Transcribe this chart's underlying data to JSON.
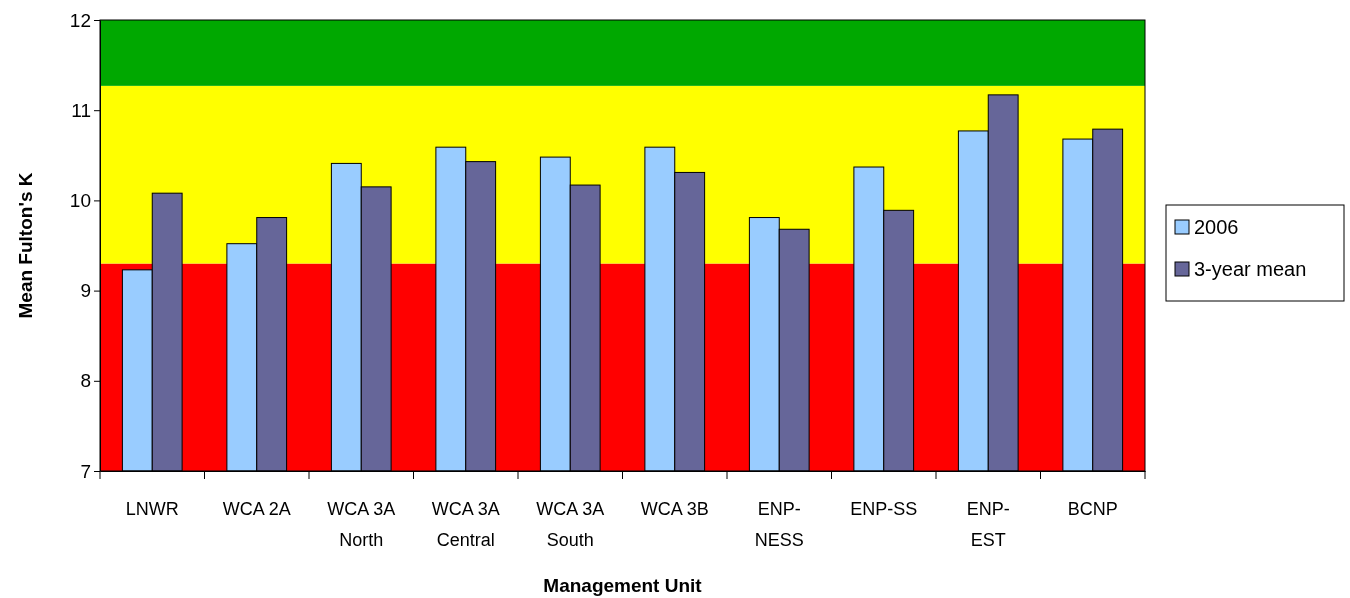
{
  "chart_data": {
    "type": "bar",
    "xlabel": "Management Unit",
    "ylabel": "Mean Fulton's K",
    "categories": [
      "LNWR",
      "WCA 2A",
      "WCA 3A North",
      "WCA 3A Central",
      "WCA 3A South",
      "WCA 3B",
      "ENP-NESS",
      "ENP-SS",
      "ENP-EST",
      "BCNP"
    ],
    "series": [
      {
        "name": "2006",
        "color": "#99ccff",
        "values": [
          9.23,
          9.52,
          10.41,
          10.59,
          10.48,
          10.59,
          9.81,
          10.37,
          10.77,
          10.68
        ]
      },
      {
        "name": "3-year mean",
        "color": "#666699",
        "values": [
          10.08,
          9.81,
          10.15,
          10.43,
          10.17,
          10.31,
          9.68,
          9.89,
          11.17,
          10.79
        ]
      }
    ],
    "ylim": [
      7,
      12
    ],
    "yticks": [
      7,
      8,
      9,
      10,
      11,
      12
    ],
    "grid": false,
    "legend": "right",
    "bands": [
      {
        "axis": "y",
        "from": 7,
        "to": 9.3,
        "color": "#ff0000"
      },
      {
        "axis": "y",
        "from": 9.3,
        "to": 11.27,
        "color": "#ffff00"
      },
      {
        "axis": "y",
        "from": 11.27,
        "to": 12,
        "color": "#00a800"
      }
    ]
  }
}
